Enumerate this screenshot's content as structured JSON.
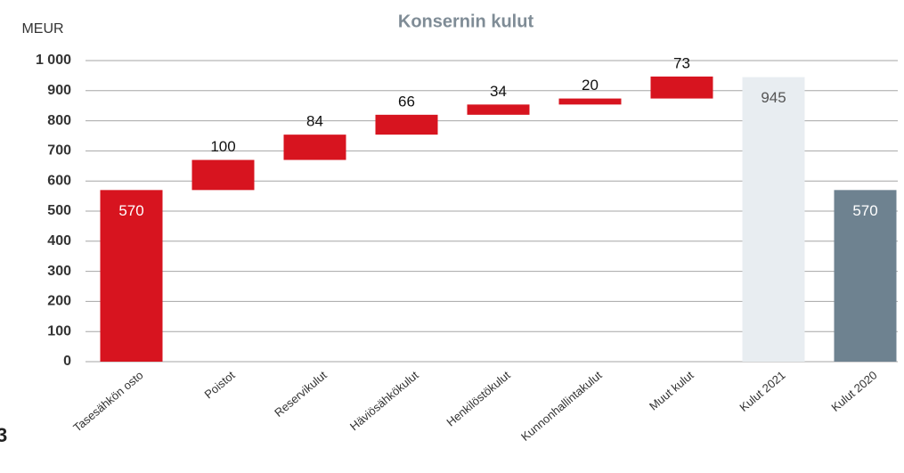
{
  "chart_data": {
    "type": "waterfall",
    "title": "Konsernin kulut",
    "y_label": "MEUR",
    "categories": [
      "Tasesähkön osto",
      "Poistot",
      "Reservikulut",
      "Häviösähkökulut",
      "Henkilöstökulut",
      "Kunnonhallintakulut",
      "Muut kulut",
      "Kulut 2021",
      "Kulut 2020"
    ],
    "values": [
      570,
      100,
      84,
      66,
      34,
      20,
      73,
      945,
      570
    ],
    "measure": [
      "absolute",
      "relative",
      "relative",
      "relative",
      "relative",
      "relative",
      "relative",
      "absolute",
      "absolute"
    ],
    "colors": [
      "#d7141f",
      "#d7141f",
      "#d7141f",
      "#d7141f",
      "#d7141f",
      "#d7141f",
      "#d7141f",
      "#e8edf1",
      "#6e8290"
    ],
    "label_colors": [
      "#ffffff",
      "#111111",
      "#111111",
      "#111111",
      "#111111",
      "#111111",
      "#111111",
      "#555555",
      "#ffffff"
    ],
    "ylim": [
      0,
      1000
    ],
    "yticks": [
      0,
      100,
      200,
      300,
      400,
      500,
      600,
      700,
      800,
      900,
      {
        "value": 1000,
        "label": "1 000"
      }
    ],
    "grid": true
  },
  "footnote": "3"
}
